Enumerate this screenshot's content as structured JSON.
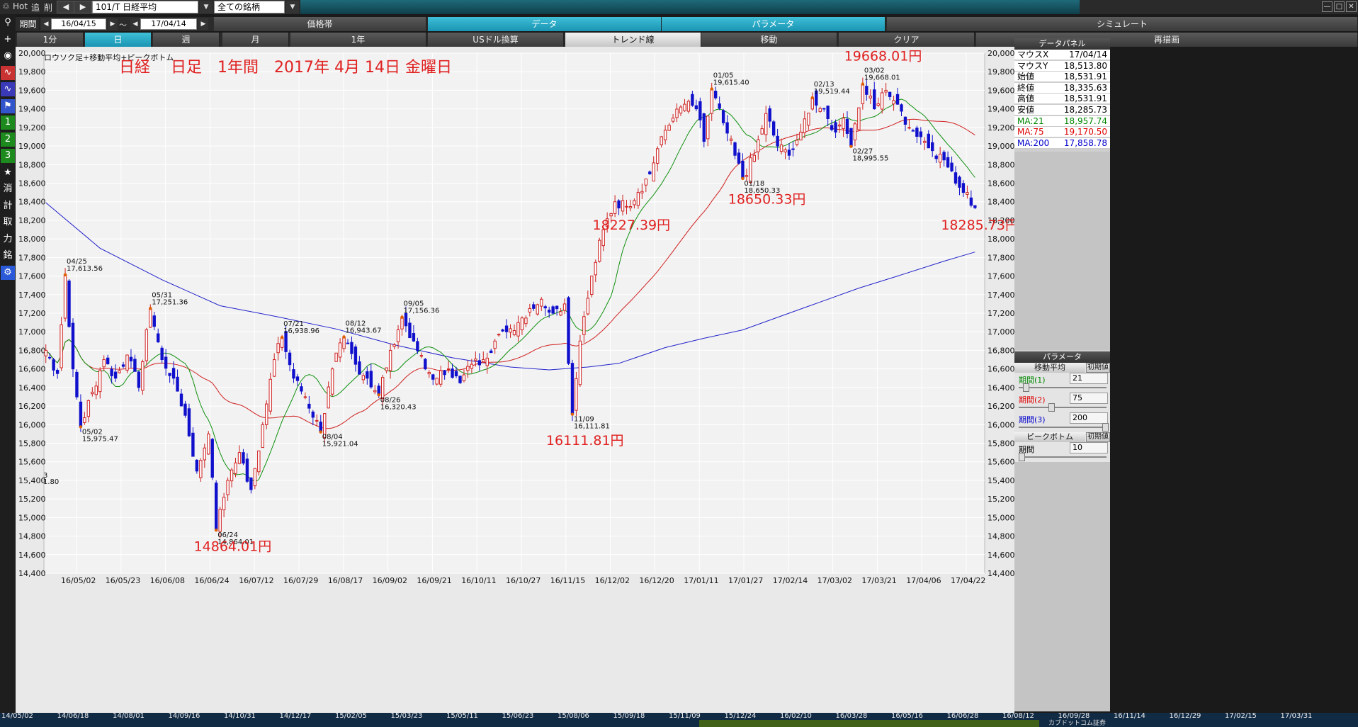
{
  "topbar": {
    "hot": "Hot",
    "tsui": "追",
    "sakujo": "削",
    "symbol": "101/T 日経平均",
    "filter": "全ての銘柄"
  },
  "period_bar": {
    "label": "期間",
    "start": "16/04/15",
    "tilde": "～",
    "end": "17/04/14"
  },
  "tabs_row2": [
    {
      "label": "価格帯",
      "style": "dark"
    },
    {
      "label": "データ",
      "style": "cyan"
    },
    {
      "label": "パラメータ",
      "style": "cyan"
    },
    {
      "label": "シミュレート",
      "style": "dark"
    }
  ],
  "tabs_row3": [
    {
      "label": "1分",
      "style": "dark"
    },
    {
      "label": "日",
      "style": "cyan"
    },
    {
      "label": "週",
      "style": "dark"
    },
    {
      "label": "月",
      "style": "dark"
    },
    {
      "label": "1年",
      "style": "dark"
    },
    {
      "label": "USドル換算",
      "style": "dark"
    },
    {
      "label": "トレンド線",
      "style": "light"
    },
    {
      "label": "移動",
      "style": "dark"
    },
    {
      "label": "クリア",
      "style": "dark"
    },
    {
      "label": "再描画",
      "style": "dark"
    }
  ],
  "left_toolbar": [
    "search-icon",
    "plus-icon",
    "camera-icon",
    "line-chart-icon",
    "line-chart-2-icon",
    "flag-icon",
    "1",
    "2",
    "3",
    "★",
    "消",
    "計",
    "取",
    "力",
    "銘",
    "gear-icon"
  ],
  "data_panel": {
    "title": "データパネル",
    "rows": [
      {
        "k": "マウスX",
        "v": "17/04/14",
        "color": "#000000"
      },
      {
        "k": "マウスY",
        "v": "18,513.80",
        "color": "#000000"
      },
      {
        "k": "始値",
        "v": "18,531.91",
        "color": "#000000"
      },
      {
        "k": "終値",
        "v": "18,335.63",
        "color": "#000000"
      },
      {
        "k": "高値",
        "v": "18,531.91",
        "color": "#000000"
      },
      {
        "k": "安値",
        "v": "18,285.73",
        "color": "#000000"
      },
      {
        "k": "MA:21",
        "v": "18,957.74",
        "color": "#008800"
      },
      {
        "k": "MA:75",
        "v": "19,170.50",
        "color": "#e00000"
      },
      {
        "k": "MA:200",
        "v": "17,858.78",
        "color": "#0000cc"
      }
    ]
  },
  "param_panel": {
    "title": "パラメータ",
    "ma_header": "移動平均",
    "reset": "初期値",
    "p1_label": "期間(1)",
    "p1": "21",
    "p2_label": "期間(2)",
    "p2": "75",
    "p3_label": "期間(3)",
    "p3": "200",
    "pb_header": "ピークボトム",
    "pb_reset": "初期値",
    "pb_label": "期間",
    "pb": "10"
  },
  "bottom_scroll": {
    "row1": [
      "14/05/02",
      "14/06/18",
      "14/08/01",
      "14/09/16",
      "14/10/31",
      "14/12/17",
      "15/02/05",
      "15/03/23",
      "15/05/11",
      "15/06/23",
      "15/08/06",
      "15/09/18",
      "15/11/09",
      "15/12/24",
      "16/02/10",
      "16/03/28",
      "16/05/16",
      "16/06/28",
      "16/08/12",
      "16/09/28",
      "16/11/14",
      "16/12/29",
      "17/02/15",
      "17/03/31"
    ],
    "row2_text": "カブドットコム証券"
  },
  "chart_data": {
    "type": "candlestick",
    "subtitle": "ロウソク足+移動平均+ピークボトム",
    "title": "日経　 日足　1年間　2017年 4月 14日 金曜日",
    "ylim": [
      14400,
      20000
    ],
    "yticks": [
      "20,000",
      "19,800",
      "19,600",
      "19,400",
      "19,200",
      "19,000",
      "18,800",
      "18,600",
      "18,400",
      "18,200",
      "18,000",
      "17,800",
      "17,600",
      "17,400",
      "17,200",
      "17,000",
      "16,800",
      "16,600",
      "16,400",
      "16,200",
      "16,000",
      "15,800",
      "15,600",
      "15,400",
      "15,200",
      "15,000",
      "14,800",
      "14,600",
      "14,400"
    ],
    "xticks": [
      "16/05/02",
      "16/05/23",
      "16/06/08",
      "16/06/24",
      "16/07/12",
      "16/07/29",
      "16/08/17",
      "16/09/02",
      "16/09/21",
      "16/10/11",
      "16/10/27",
      "16/11/15",
      "16/12/02",
      "16/12/20",
      "17/01/11",
      "17/01/27",
      "17/02/14",
      "17/03/02",
      "17/03/21",
      "17/04/06",
      "17/04/22"
    ],
    "peaks": [
      {
        "date": "04/25",
        "value": "17,613.56",
        "i": 5,
        "v": 17613.56,
        "type": "peak"
      },
      {
        "date": "05/02",
        "value": "15,975.47",
        "i": 9,
        "v": 15975.47,
        "type": "bottom"
      },
      {
        "date": "05/31",
        "value": "17,251.36",
        "i": 27,
        "v": 17251.36,
        "type": "peak"
      },
      {
        "date": "06/24",
        "value": "14,864.01",
        "i": 44,
        "v": 14864.01,
        "type": "bottom"
      },
      {
        "date": "07/21",
        "value": "16,938.96",
        "i": 61,
        "v": 16938.96,
        "type": "peak"
      },
      {
        "date": "08/04",
        "value": "15,921.04",
        "i": 71,
        "v": 15921.04,
        "type": "bottom"
      },
      {
        "date": "08/12",
        "value": "16,943.67",
        "i": 77,
        "v": 16943.67,
        "type": "peak"
      },
      {
        "date": "08/26",
        "value": "16,320.43",
        "i": 86,
        "v": 16320.43,
        "type": "bottom"
      },
      {
        "date": "09/05",
        "value": "17,156.36",
        "i": 92,
        "v": 17156.36,
        "type": "peak"
      },
      {
        "date": "11/09",
        "value": "16,111.81",
        "i": 136,
        "v": 16111.81,
        "type": "bottom"
      },
      {
        "date": "01/05",
        "value": "19,615.40",
        "i": 172,
        "v": 19615.4,
        "type": "peak"
      },
      {
        "date": "01/18",
        "value": "18,650.33",
        "i": 180,
        "v": 18650.33,
        "type": "bottom"
      },
      {
        "date": "02/13",
        "value": "19,519.44",
        "i": 198,
        "v": 19519.44,
        "type": "peak"
      },
      {
        "date": "02/27",
        "value": "18,995.55",
        "i": 208,
        "v": 18995.55,
        "type": "bottom"
      },
      {
        "date": "03/02",
        "value": "19,668.01",
        "i": 211,
        "v": 19668.01,
        "type": "peak"
      }
    ],
    "annotations": [
      {
        "text": "19668.01円",
        "i": 215,
        "v": 19920
      },
      {
        "text": "18650.33円",
        "i": 185,
        "v": 18380
      },
      {
        "text": "18227.39円",
        "i": 150,
        "v": 18100
      },
      {
        "text": "18285.73円",
        "i": 240,
        "v": 18100
      },
      {
        "text": "16111.81円",
        "i": 138,
        "v": 15780
      },
      {
        "text": "14864.01円",
        "i": 47,
        "v": 14640
      }
    ],
    "left_cut": {
      "top": "3",
      "bot": "1.80"
    },
    "anchors": [
      [
        0,
        16800
      ],
      [
        3,
        16550
      ],
      [
        5,
        17613.56
      ],
      [
        7,
        16600
      ],
      [
        9,
        15975.47
      ],
      [
        12,
        16350
      ],
      [
        15,
        16700
      ],
      [
        18,
        16500
      ],
      [
        21,
        16750
      ],
      [
        24,
        16400
      ],
      [
        27,
        17251.36
      ],
      [
        30,
        16700
      ],
      [
        33,
        16500
      ],
      [
        36,
        16100
      ],
      [
        39,
        15500
      ],
      [
        42,
        15900
      ],
      [
        44,
        14864.01
      ],
      [
        47,
        15400
      ],
      [
        50,
        15700
      ],
      [
        53,
        15300
      ],
      [
        56,
        16000
      ],
      [
        59,
        16700
      ],
      [
        61,
        16938.96
      ],
      [
        64,
        16500
      ],
      [
        67,
        16300
      ],
      [
        71,
        15921.04
      ],
      [
        74,
        16600
      ],
      [
        77,
        16943.67
      ],
      [
        80,
        16650
      ],
      [
        83,
        16500
      ],
      [
        86,
        16320.43
      ],
      [
        89,
        16800
      ],
      [
        92,
        17156.36
      ],
      [
        95,
        16900
      ],
      [
        98,
        16600
      ],
      [
        101,
        16500
      ],
      [
        104,
        16600
      ],
      [
        107,
        16450
      ],
      [
        110,
        16650
      ],
      [
        113,
        16700
      ],
      [
        116,
        16900
      ],
      [
        119,
        17000
      ],
      [
        122,
        17100
      ],
      [
        125,
        17250
      ],
      [
        128,
        17350
      ],
      [
        131,
        17200
      ],
      [
        134,
        17300
      ],
      [
        136,
        16111.81
      ],
      [
        138,
        16900
      ],
      [
        141,
        17600
      ],
      [
        144,
        18100
      ],
      [
        147,
        18400
      ],
      [
        150,
        18350
      ],
      [
        153,
        18500
      ],
      [
        156,
        18700
      ],
      [
        159,
        19100
      ],
      [
        162,
        19300
      ],
      [
        165,
        19450
      ],
      [
        168,
        19400
      ],
      [
        170,
        19050
      ],
      [
        172,
        19615.4
      ],
      [
        175,
        19250
      ],
      [
        178,
        18900
      ],
      [
        180,
        18650.33
      ],
      [
        183,
        18900
      ],
      [
        186,
        19350
      ],
      [
        189,
        19000
      ],
      [
        192,
        18900
      ],
      [
        195,
        19150
      ],
      [
        198,
        19519.44
      ],
      [
        201,
        19400
      ],
      [
        204,
        19150
      ],
      [
        206,
        19300
      ],
      [
        208,
        18995.55
      ],
      [
        211,
        19668.01
      ],
      [
        214,
        19400
      ],
      [
        217,
        19600
      ],
      [
        220,
        19450
      ],
      [
        223,
        19200
      ],
      [
        226,
        19100
      ],
      [
        229,
        18950
      ],
      [
        232,
        18850
      ],
      [
        235,
        18600
      ],
      [
        238,
        18500
      ],
      [
        240,
        18335.63
      ]
    ],
    "ma200": [
      [
        0,
        18390
      ],
      [
        14,
        17900
      ],
      [
        30,
        17560
      ],
      [
        45,
        17280
      ],
      [
        60,
        17160
      ],
      [
        75,
        17030
      ],
      [
        90,
        16860
      ],
      [
        105,
        16720
      ],
      [
        120,
        16620
      ],
      [
        130,
        16590
      ],
      [
        140,
        16620
      ],
      [
        148,
        16660
      ],
      [
        160,
        16830
      ],
      [
        170,
        16930
      ],
      [
        180,
        17020
      ],
      [
        190,
        17170
      ],
      [
        200,
        17320
      ],
      [
        210,
        17470
      ],
      [
        220,
        17600
      ],
      [
        232,
        17760
      ],
      [
        240,
        17858.78
      ]
    ]
  }
}
